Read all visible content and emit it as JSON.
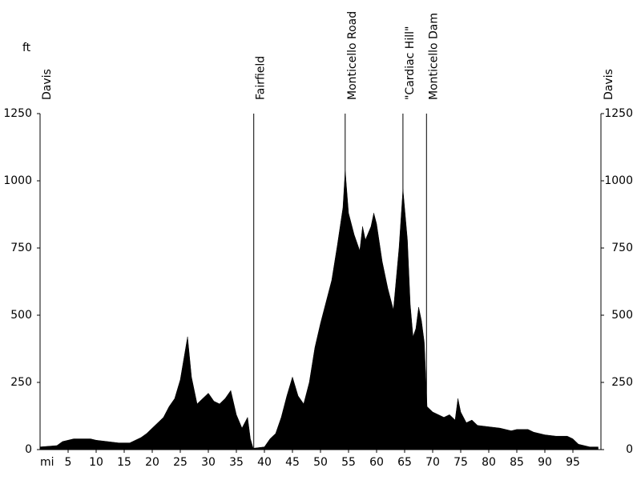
{
  "chart_data": {
    "type": "area",
    "x_unit": "mi",
    "y_unit": "ft",
    "color": "#000000",
    "xlim": [
      0,
      100
    ],
    "ylim": [
      0,
      1250
    ],
    "xticks": [
      5,
      10,
      15,
      20,
      25,
      30,
      35,
      40,
      45,
      50,
      55,
      60,
      65,
      70,
      75,
      80,
      85,
      90,
      95
    ],
    "yticks": [
      0,
      250,
      500,
      750,
      1000,
      1250
    ],
    "markers": [
      {
        "label": "Davis",
        "x": 0
      },
      {
        "label": "Fairfield",
        "x": 38.1
      },
      {
        "label": "Monticello Road",
        "x": 54.4
      },
      {
        "label": "\"Cardiac Hill\"",
        "x": 64.7
      },
      {
        "label": "Monticello Dam",
        "x": 68.9
      },
      {
        "label": "Davis",
        "x": 100
      }
    ],
    "x": [
      0,
      3,
      4,
      6,
      9,
      10,
      12,
      14,
      16,
      17,
      18,
      19,
      20,
      21,
      22,
      23,
      24,
      25,
      26.3,
      27,
      28,
      29,
      30,
      31,
      32,
      33,
      34,
      35,
      36,
      37,
      37.5,
      38,
      40,
      41,
      42,
      43,
      44,
      45,
      46,
      47,
      48,
      49,
      50,
      51,
      52,
      53,
      54,
      54.4,
      55,
      56,
      57,
      57.5,
      58,
      59,
      59.5,
      60,
      61,
      62,
      63,
      64,
      64.7,
      65.5,
      66,
      66.5,
      67,
      67.5,
      68,
      68.5,
      69,
      70,
      72,
      73,
      74,
      74.5,
      75,
      76,
      77,
      78,
      80,
      82,
      84,
      85,
      87,
      88,
      90,
      92,
      94,
      95,
      96,
      98,
      99.5
    ],
    "y": [
      10,
      15,
      30,
      40,
      40,
      35,
      30,
      25,
      25,
      35,
      45,
      60,
      80,
      100,
      120,
      160,
      190,
      260,
      420,
      270,
      170,
      190,
      210,
      180,
      170,
      190,
      220,
      130,
      80,
      120,
      40,
      5,
      10,
      40,
      60,
      120,
      200,
      270,
      200,
      170,
      250,
      380,
      470,
      550,
      630,
      760,
      900,
      1040,
      880,
      800,
      740,
      830,
      780,
      830,
      880,
      840,
      700,
      600,
      520,
      750,
      970,
      780,
      540,
      420,
      450,
      530,
      480,
      400,
      160,
      140,
      120,
      130,
      110,
      190,
      140,
      100,
      110,
      90,
      85,
      80,
      70,
      75,
      75,
      65,
      55,
      50,
      50,
      40,
      20,
      10,
      10
    ]
  }
}
